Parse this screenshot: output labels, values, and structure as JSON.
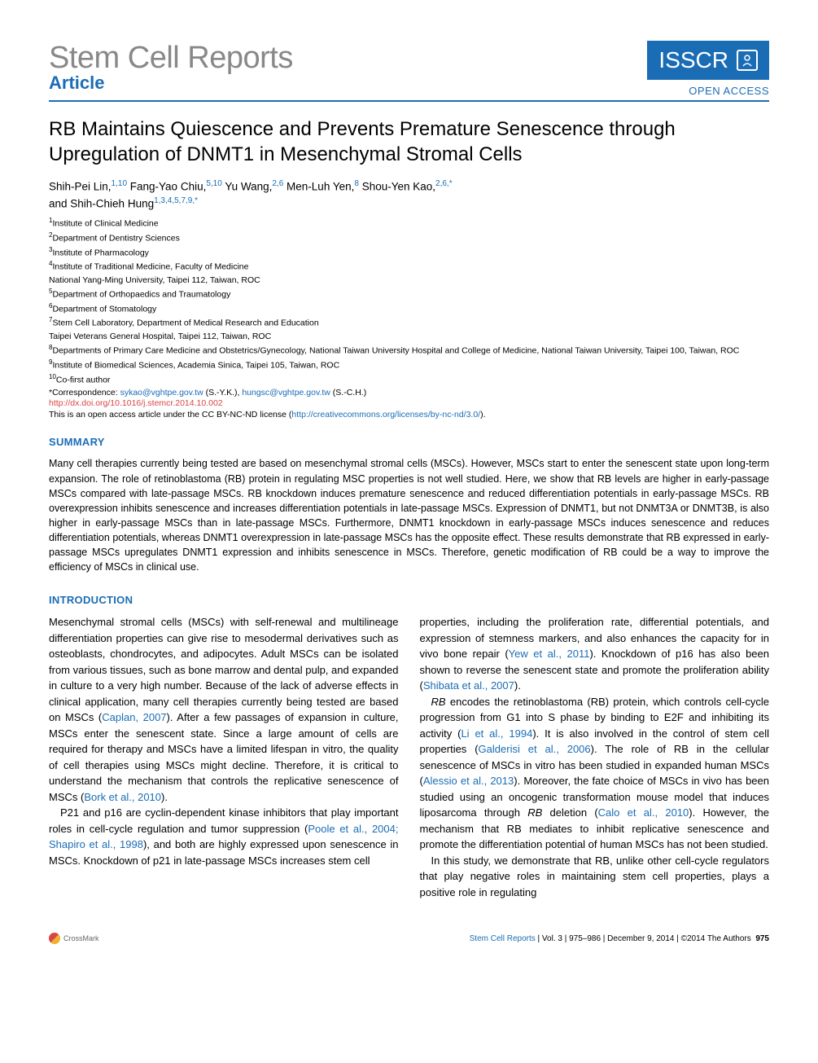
{
  "header": {
    "journal_name": "Stem Cell Reports",
    "article_label": "Article",
    "isscr": "ISSCR",
    "open_access": "OPEN ACCESS"
  },
  "title": "RB Maintains Quiescence and Prevents Premature Senescence through Upregulation of DNMT1 in Mesenchymal Stromal Cells",
  "authors_line1": "Shih-Pei Lin,",
  "authors_sup1": "1,10",
  "authors_line1b": " Fang-Yao Chiu,",
  "authors_sup2": "5,10",
  "authors_line1c": " Yu Wang,",
  "authors_sup3": "2,6",
  "authors_line1d": " Men-Luh Yen,",
  "authors_sup4": "8",
  "authors_line1e": " Shou-Yen Kao,",
  "authors_sup5": "2,6,*",
  "authors_line2": "and Shih-Chieh Hung",
  "authors_sup6": "1,3,4,5,7,9,*",
  "affiliations": [
    {
      "n": "1",
      "text": "Institute of Clinical Medicine"
    },
    {
      "n": "2",
      "text": "Department of Dentistry Sciences"
    },
    {
      "n": "3",
      "text": "Institute of Pharmacology"
    },
    {
      "n": "4",
      "text": "Institute of Traditional Medicine, Faculty of Medicine"
    },
    {
      "n": "",
      "text": "National Yang-Ming University, Taipei 112, Taiwan, ROC"
    },
    {
      "n": "5",
      "text": "Department of Orthopaedics and Traumatology"
    },
    {
      "n": "6",
      "text": "Department of Stomatology"
    },
    {
      "n": "7",
      "text": "Stem Cell Laboratory, Department of Medical Research and Education"
    },
    {
      "n": "",
      "text": "Taipei Veterans General Hospital, Taipei 112, Taiwan, ROC"
    },
    {
      "n": "8",
      "text": "Departments of Primary Care Medicine and Obstetrics/Gynecology, National Taiwan University Hospital and College of Medicine, National Taiwan University, Taipei 100, Taiwan, ROC"
    },
    {
      "n": "9",
      "text": "Institute of Biomedical Sciences, Academia Sinica, Taipei 105, Taiwan, ROC"
    },
    {
      "n": "10",
      "text": "Co-first author"
    }
  ],
  "correspondence_prefix": "*Correspondence: ",
  "email1": "sykao@vghtpe.gov.tw",
  "email1_suffix": " (S.-Y.K.), ",
  "email2": "hungsc@vghtpe.gov.tw",
  "email2_suffix": " (S.-C.H.)",
  "doi": "http://dx.doi.org/10.1016/j.stemcr.2014.10.002",
  "license_prefix": "This is an open access article under the CC BY-NC-ND license (",
  "license_url": "http://creativecommons.org/licenses/by-nc-nd/3.0/",
  "license_suffix": ").",
  "summary_heading": "SUMMARY",
  "summary_text": "Many cell therapies currently being tested are based on mesenchymal stromal cells (MSCs). However, MSCs start to enter the senescent state upon long-term expansion. The role of retinoblastoma (RB) protein in regulating MSC properties is not well studied. Here, we show that RB levels are higher in early-passage MSCs compared with late-passage MSCs. RB knockdown induces premature senescence and reduced differentiation potentials in early-passage MSCs. RB overexpression inhibits senescence and increases differentiation potentials in late-passage MSCs. Expression of DNMT1, but not DNMT3A or DNMT3B, is also higher in early-passage MSCs than in late-passage MSCs. Furthermore, DNMT1 knockdown in early-passage MSCs induces senescence and reduces differentiation potentials, whereas DNMT1 overexpression in late-passage MSCs has the opposite effect. These results demonstrate that RB expressed in early-passage MSCs upregulates DNMT1 expression and inhibits senescence in MSCs. Therefore, genetic modification of RB could be a way to improve the efficiency of MSCs in clinical use.",
  "intro_heading": "INTRODUCTION",
  "col1_p1a": "Mesenchymal stromal cells (MSCs) with self-renewal and multilineage differentiation properties can give rise to mesodermal derivatives such as osteoblasts, chondrocytes, and adipocytes. Adult MSCs can be isolated from various tissues, such as bone marrow and dental pulp, and expanded in culture to a very high number. Because of the lack of adverse effects in clinical application, many cell therapies currently being tested are based on MSCs (",
  "col1_cite1": "Caplan, 2007",
  "col1_p1b": "). After a few passages of expansion in culture, MSCs enter the senescent state. Since a large amount of cells are required for therapy and MSCs have a limited lifespan in vitro, the quality of cell therapies using MSCs might decline. Therefore, it is critical to understand the mechanism that controls the replicative senescence of MSCs (",
  "col1_cite2": "Bork et al., 2010",
  "col1_p1c": ").",
  "col1_p2a": "P21 and p16 are cyclin-dependent kinase inhibitors that play important roles in cell-cycle regulation and tumor suppression (",
  "col1_cite3": "Poole et al., 2004; Shapiro et al., 1998",
  "col1_p2b": "), and both are highly expressed upon senescence in MSCs. Knockdown of p21 in late-passage MSCs increases stem cell",
  "col2_p1a": "properties, including the proliferation rate, differential potentials, and expression of stemness markers, and also enhances the capacity for in vivo bone repair (",
  "col2_cite1": "Yew et al., 2011",
  "col2_p1b": "). Knockdown of p16 has also been shown to reverse the senescent state and promote the proliferation ability (",
  "col2_cite2": "Shibata et al., 2007",
  "col2_p1c": ").",
  "col2_p2_rb": "RB",
  "col2_p2a": " encodes the retinoblastoma (RB) protein, which controls cell-cycle progression from G1 into S phase by binding to E2F and inhibiting its activity (",
  "col2_cite3": "Li et al., 1994",
  "col2_p2b": "). It is also involved in the control of stem cell properties (",
  "col2_cite4": "Galderisi et al., 2006",
  "col2_p2c": "). The role of RB in the cellular senescence of MSCs in vitro has been studied in expanded human MSCs (",
  "col2_cite5": "Alessio et al., 2013",
  "col2_p2d": "). Moreover, the fate choice of MSCs in vivo has been studied using an oncogenic transformation mouse model that induces liposarcoma through ",
  "col2_p2_rb2": "RB",
  "col2_p2e": " deletion (",
  "col2_cite6": "Calo et al., 2010",
  "col2_p2f": "). However, the mechanism that RB mediates to inhibit replicative senescence and promote the differentiation potential of human MSCs has not been studied.",
  "col2_p3": "In this study, we demonstrate that RB, unlike other cell-cycle regulators that play negative roles in maintaining stem cell properties, plays a positive role in regulating",
  "footer": {
    "crossmark": "CrossMark",
    "journal": "Stem Cell Reports",
    "vol": " | Vol. 3 | 975–986 | December 9, 2014 | ©2014 The Authors",
    "page": "975"
  },
  "colors": {
    "primary_blue": "#1a6db5",
    "link_red": "#d94545",
    "gray_text": "#888888"
  },
  "typography": {
    "title_fontsize": 24,
    "body_fontsize": 13,
    "affiliation_fontsize": 10.5,
    "journal_name_fontsize": 38
  }
}
